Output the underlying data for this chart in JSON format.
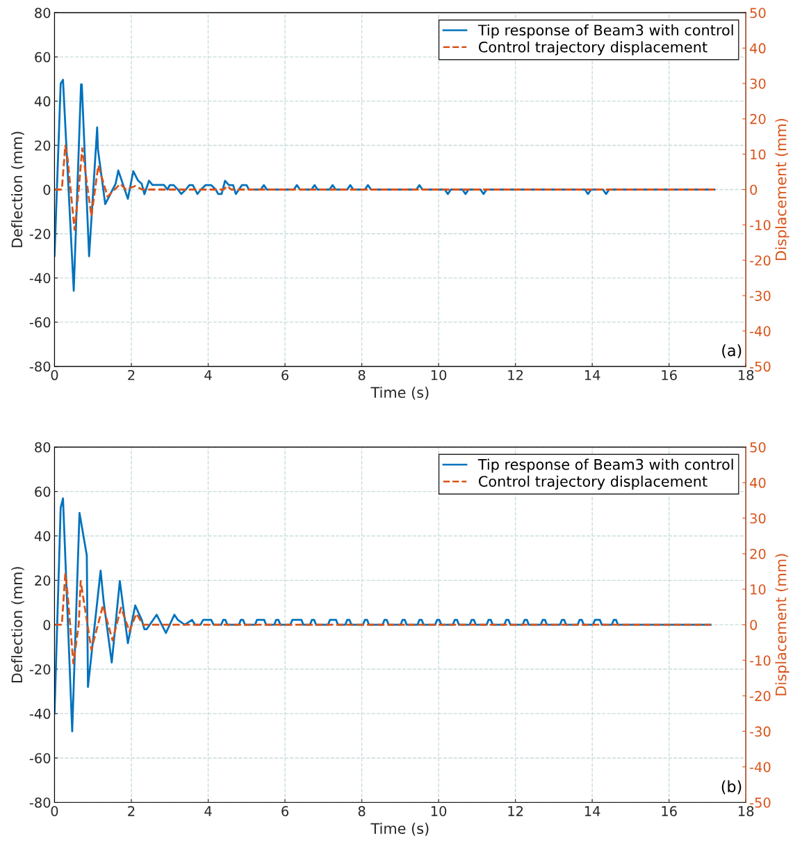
{
  "chart_data": [
    {
      "type": "line",
      "xlabel": "Time (s)",
      "ylabel": "Deflection (mm)",
      "y2label": "Displacement (mm)",
      "xlim": [
        0,
        18
      ],
      "xticks": [
        0,
        2,
        4,
        6,
        8,
        10,
        12,
        14,
        16,
        18
      ],
      "ylim": [
        -80,
        80
      ],
      "yticks": [
        -80,
        -60,
        -40,
        -20,
        0,
        20,
        40,
        60,
        80
      ],
      "y2lim": [
        -50,
        50
      ],
      "y2ticks": [
        -50,
        -40,
        -30,
        -20,
        -10,
        0,
        10,
        20,
        30,
        40,
        50
      ],
      "grid": true,
      "legend": "top right",
      "annotations": [
        "(a)"
      ],
      "series": [
        {
          "name": "Tip response of Beam3 with control",
          "color": "#0072bd",
          "line_style": "solid",
          "x": [
            0,
            0.16,
            0.22,
            0.5,
            0.69,
            0.71,
            0.9,
            1.11,
            1.13,
            1.32,
            1.59,
            1.66,
            1.91,
            2.05,
            2.17,
            2.27,
            2.34,
            2.46,
            2.55,
            2.85,
            2.94,
            3.0,
            3.1,
            3.21,
            3.3,
            3.42,
            3.51,
            3.6,
            3.72,
            3.81,
            3.93,
            4.08,
            4.2,
            4.26,
            4.35,
            4.44,
            4.54,
            4.65,
            4.72,
            4.8,
            4.88,
            5.0,
            5.06,
            5.37,
            5.45,
            5.53,
            6.23,
            6.31,
            6.39,
            6.69,
            6.77,
            6.85,
            7.16,
            7.24,
            7.32,
            7.62,
            7.7,
            7.78,
            8.08,
            8.16,
            8.24,
            9.42,
            9.5,
            9.58,
            10.16,
            10.24,
            10.32,
            10.62,
            10.7,
            10.78,
            11.09,
            11.17,
            11.25,
            13.81,
            13.89,
            13.97,
            14.28,
            14.36,
            14.44,
            17.18
          ],
          "values": [
            -30,
            47.9,
            49.7,
            -45.8,
            47.6,
            47.6,
            -30.2,
            28.1,
            18.2,
            -6.6,
            2.6,
            8.6,
            -4.2,
            8.3,
            4.2,
            2.6,
            -2.1,
            4.0,
            2.1,
            2.1,
            0,
            2,
            2,
            0,
            -2,
            0,
            2,
            2,
            -2,
            0,
            2,
            2,
            0,
            -2,
            -2,
            4,
            2,
            2,
            -2,
            0,
            2,
            2,
            0,
            0,
            2,
            0,
            0,
            2,
            0,
            0,
            2,
            0,
            0,
            2,
            0,
            0,
            2,
            0,
            0,
            2,
            0,
            0,
            2,
            0,
            0,
            -2,
            0,
            0,
            -2,
            0,
            0,
            -2,
            0,
            0,
            -2,
            0,
            0,
            -2,
            0,
            0
          ]
        },
        {
          "name": "Control trajectory displacement",
          "color": "#d95319",
          "line_style": "dashed",
          "axis": "y2",
          "x": [
            0,
            0.19,
            0.28,
            0.34,
            0.52,
            0.63,
            0.72,
            0.96,
            1.14,
            1.38,
            1.71,
            1.86,
            2.1,
            2.28,
            4.4,
            4.5,
            4.6,
            17.18
          ],
          "values": [
            0,
            0,
            12.4,
            8.8,
            -11.4,
            0,
            11.7,
            -7.5,
            6.8,
            -2,
            1.6,
            0,
            1,
            0,
            0,
            1,
            0,
            0
          ]
        }
      ]
    },
    {
      "type": "line",
      "xlabel": "Time (s)",
      "ylabel": "Deflection (mm)",
      "y2label": "Displacement (mm)",
      "xlim": [
        0,
        18
      ],
      "xticks": [
        0,
        2,
        4,
        6,
        8,
        10,
        12,
        14,
        16,
        18
      ],
      "ylim": [
        -80,
        80
      ],
      "yticks": [
        -80,
        -60,
        -40,
        -20,
        0,
        20,
        40,
        60,
        80
      ],
      "y2lim": [
        -50,
        50
      ],
      "y2ticks": [
        -50,
        -40,
        -30,
        -20,
        -10,
        0,
        10,
        20,
        30,
        40,
        50
      ],
      "grid": true,
      "legend": "top right",
      "annotations": [
        "(b)"
      ],
      "series": [
        {
          "name": "Tip response of Beam3 with control",
          "color": "#0072bd",
          "line_style": "solid",
          "x": [
            0,
            0.16,
            0.22,
            0.46,
            0.65,
            0.84,
            0.87,
            1.2,
            1.28,
            1.49,
            1.7,
            1.91,
            2.01,
            2.1,
            2.27,
            2.34,
            2.4,
            2.66,
            2.9,
            3.12,
            3.21,
            3.39,
            3.58,
            3.66,
            3.8,
            3.87,
            4.08,
            4.14,
            4.34,
            4.39,
            4.45,
            4.5,
            4.8,
            4.85,
            4.91,
            4.96,
            5.22,
            5.27,
            5.46,
            5.51,
            5.72,
            5.77,
            5.83,
            5.88,
            6.14,
            6.19,
            6.43,
            6.48,
            6.65,
            6.7,
            6.76,
            6.81,
            7.12,
            7.17,
            7.33,
            7.38,
            7.57,
            7.62,
            7.68,
            7.73,
            8.03,
            8.08,
            8.14,
            8.19,
            8.54,
            8.59,
            8.65,
            8.7,
            9.01,
            9.06,
            9.12,
            9.17,
            9.45,
            9.5,
            9.56,
            9.61,
            9.91,
            9.96,
            10.02,
            10.07,
            10.37,
            10.42,
            10.48,
            10.53,
            10.81,
            10.86,
            10.92,
            10.97,
            11.25,
            11.3,
            11.36,
            11.41,
            11.71,
            11.76,
            11.82,
            11.87,
            12.19,
            12.24,
            12.3,
            12.35,
            12.66,
            12.71,
            12.77,
            12.82,
            13.16,
            13.21,
            13.27,
            13.32,
            13.62,
            13.67,
            13.73,
            13.78,
            14.02,
            14.07,
            14.2,
            14.25,
            14.51,
            14.56,
            14.62,
            14.67,
            17.08
          ],
          "values": [
            -40,
            52.7,
            56.9,
            -48,
            50.4,
            31.2,
            -28,
            24.4,
            10.3,
            -17,
            19.7,
            -8.3,
            0.8,
            8.7,
            2.2,
            -2,
            -2,
            4.5,
            -3.7,
            4.5,
            2.2,
            0,
            2.2,
            0,
            0,
            2.2,
            2.2,
            0,
            0,
            2.2,
            2.2,
            0,
            0,
            2.2,
            2.2,
            0,
            0,
            2.2,
            2.2,
            0,
            0,
            2.2,
            2.2,
            0,
            0,
            2.2,
            2.2,
            0,
            0,
            2.2,
            2.2,
            0,
            0,
            2.2,
            2.2,
            0,
            0,
            2.2,
            2.2,
            0,
            0,
            2.2,
            2.2,
            0,
            0,
            2.2,
            2.2,
            0,
            0,
            2.2,
            2.2,
            0,
            0,
            2.2,
            2.2,
            0,
            0,
            2.2,
            2.2,
            0,
            0,
            2.2,
            2.2,
            0,
            0,
            2.2,
            2.2,
            0,
            0,
            2.2,
            2.2,
            0,
            0,
            2.2,
            2.2,
            0,
            0,
            2.2,
            2.2,
            0,
            0,
            2.2,
            2.2,
            0,
            0,
            2.2,
            2.2,
            0,
            0,
            2.2,
            2.2,
            0,
            0,
            2.2,
            2.2,
            0,
            0,
            2.2,
            2.2,
            0,
            0
          ]
        },
        {
          "name": "Control trajectory displacement",
          "color": "#d95319",
          "line_style": "dashed",
          "axis": "y2",
          "x": [
            0,
            0.19,
            0.28,
            0.34,
            0.49,
            0.63,
            0.68,
            0.96,
            1.26,
            1.51,
            1.73,
            1.95,
            2.13,
            2.31,
            17.08
          ],
          "values": [
            0,
            0,
            14.3,
            8.7,
            -10.9,
            0,
            12.3,
            -7,
            5.4,
            -4.4,
            4.8,
            -1.8,
            3.1,
            0,
            0
          ]
        }
      ]
    }
  ]
}
